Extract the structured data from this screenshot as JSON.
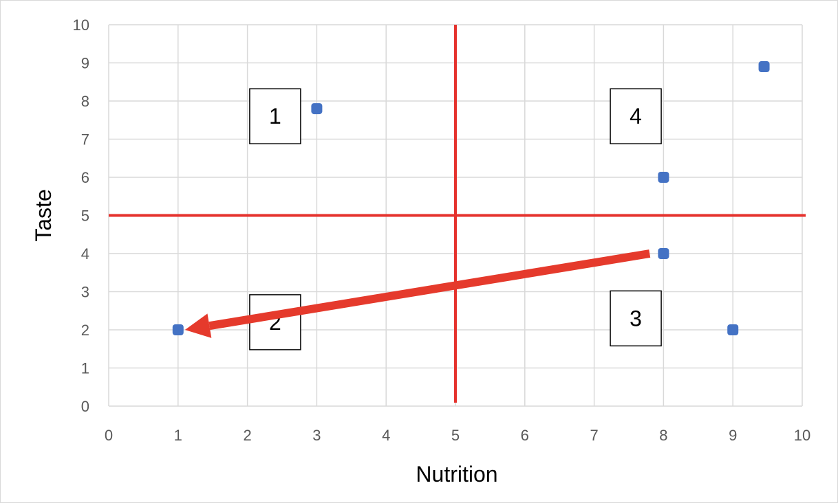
{
  "chart_data": {
    "type": "scatter",
    "title": "",
    "xlabel": "Nutrition",
    "ylabel": "Taste",
    "xlim": [
      0,
      10
    ],
    "ylim": [
      0,
      10
    ],
    "x_ticks": [
      "0",
      "1",
      "2",
      "3",
      "4",
      "5",
      "6",
      "7",
      "8",
      "9",
      "10"
    ],
    "y_ticks": [
      "0",
      "1",
      "2",
      "3",
      "4",
      "5",
      "6",
      "7",
      "8",
      "9",
      "10"
    ],
    "grid": true,
    "legend": "none",
    "points": [
      {
        "x": 3,
        "y": 7.8
      },
      {
        "x": 9.45,
        "y": 8.9
      },
      {
        "x": 8,
        "y": 6
      },
      {
        "x": 8,
        "y": 4
      },
      {
        "x": 1,
        "y": 2
      },
      {
        "x": 9,
        "y": 2
      }
    ],
    "point_color": "#4472c4",
    "reference_lines": [
      {
        "orientation": "vertical",
        "value": 5
      },
      {
        "orientation": "horizontal",
        "value": 5
      }
    ],
    "reference_line_color": "#e5322d",
    "arrow": {
      "from": {
        "x": 7.8,
        "y": 4
      },
      "to": {
        "x": 1.1,
        "y": 2
      },
      "color": "#e53a2c"
    },
    "quadrant_labels": [
      {
        "text": "1",
        "x": 2.4,
        "y": 7.6
      },
      {
        "text": "4",
        "x": 7.6,
        "y": 7.6
      },
      {
        "text": "2",
        "x": 2.4,
        "y": 2.2
      },
      {
        "text": "3",
        "x": 7.6,
        "y": 2.3
      }
    ]
  }
}
